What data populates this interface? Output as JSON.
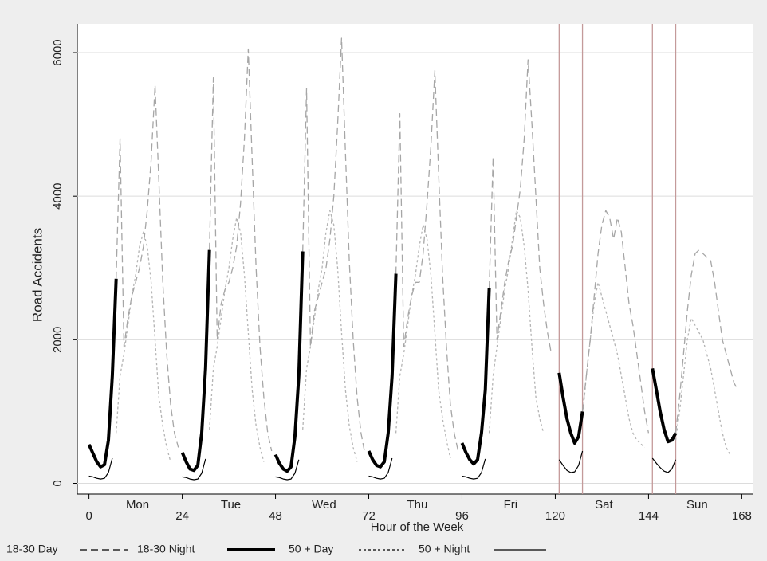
{
  "chart_data": {
    "type": "line",
    "x_label": "Hour of the Week",
    "y_label": "Road Accidents",
    "xlim": [
      -3,
      171
    ],
    "ylim": [
      -150,
      6400
    ],
    "xticks": [
      0,
      24,
      48,
      72,
      96,
      120,
      144,
      168
    ],
    "yticks": [
      0,
      2000,
      4000,
      6000
    ],
    "grid": true,
    "day_labels": [
      "Mon",
      "Tue",
      "Wed",
      "Thu",
      "Fri",
      "Sat",
      "Sun"
    ],
    "xlines": [
      121,
      127,
      145,
      151
    ],
    "xline_color": "#c49a9a",
    "series": [
      {
        "name": "18-30 Day",
        "color": "#a6a6a6",
        "dash": "long",
        "x": [
          7,
          8,
          9,
          10,
          11,
          12,
          13,
          14,
          15,
          16,
          17,
          18,
          19,
          20,
          21,
          22,
          23,
          null,
          31,
          32,
          33,
          34,
          35,
          36,
          37,
          38,
          39,
          40,
          41,
          42,
          43,
          44,
          45,
          46,
          47,
          null,
          55,
          56,
          57,
          58,
          59,
          60,
          61,
          62,
          63,
          64,
          65,
          66,
          67,
          68,
          69,
          70,
          71,
          null,
          79,
          80,
          81,
          82,
          83,
          84,
          85,
          86,
          87,
          88,
          89,
          90,
          91,
          92,
          93,
          94,
          95,
          null,
          103,
          104,
          105,
          106,
          107,
          108,
          109,
          110,
          111,
          112,
          113,
          114,
          115,
          116,
          117,
          118,
          119,
          null,
          127,
          128,
          129,
          130,
          131,
          132,
          133,
          134,
          135,
          136,
          137,
          138,
          139,
          140,
          141,
          142,
          143,
          144,
          null,
          151,
          152,
          153,
          154,
          155,
          156,
          157,
          158,
          159,
          160,
          161,
          162,
          163,
          164,
          165,
          166,
          167
        ],
        "values": [
          2850,
          4800,
          1900,
          2300,
          2600,
          2800,
          3000,
          3300,
          3800,
          4500,
          5550,
          4200,
          2800,
          1800,
          1100,
          700,
          500,
          null,
          3250,
          5650,
          2000,
          2500,
          2700,
          2800,
          3000,
          3300,
          3900,
          4800,
          6050,
          4500,
          3000,
          1900,
          1200,
          700,
          450,
          null,
          3230,
          5500,
          1900,
          2400,
          2600,
          2800,
          3000,
          3400,
          4000,
          5000,
          6200,
          4600,
          3100,
          2000,
          1200,
          700,
          420,
          null,
          2920,
          5150,
          1900,
          2300,
          2600,
          2800,
          2800,
          3200,
          3900,
          4700,
          5750,
          4300,
          2900,
          1900,
          1100,
          700,
          450,
          null,
          2720,
          4550,
          2000,
          2400,
          2800,
          3100,
          3300,
          3700,
          4100,
          4800,
          5900,
          5000,
          4000,
          3000,
          2500,
          2100,
          1800,
          null,
          1000,
          1500,
          2000,
          2600,
          3200,
          3600,
          3800,
          3700,
          3400,
          3700,
          3500,
          3000,
          2500,
          2200,
          1800,
          1400,
          1000,
          700,
          null,
          700,
          1200,
          1800,
          2400,
          2900,
          3200,
          3250,
          3200,
          3150,
          3100,
          2800,
          2400,
          2000,
          1800,
          1600,
          1400,
          1300
        ]
      },
      {
        "name": "18-30 Night",
        "color": "#000000",
        "dash": "thick",
        "x": [
          0,
          1,
          2,
          3,
          4,
          5,
          6,
          7,
          null,
          24,
          25,
          26,
          27,
          28,
          29,
          30,
          31,
          null,
          48,
          49,
          50,
          51,
          52,
          53,
          54,
          55,
          null,
          72,
          73,
          74,
          75,
          76,
          77,
          78,
          79,
          null,
          96,
          97,
          98,
          99,
          100,
          101,
          102,
          103,
          null,
          121,
          122,
          123,
          124,
          125,
          126,
          127,
          null,
          145,
          146,
          147,
          148,
          149,
          150,
          151
        ],
        "values": [
          540,
          420,
          300,
          230,
          260,
          600,
          1500,
          2850,
          null,
          430,
          300,
          200,
          180,
          250,
          700,
          1600,
          3250,
          null,
          400,
          280,
          200,
          170,
          230,
          650,
          1500,
          3230,
          null,
          450,
          330,
          250,
          230,
          300,
          700,
          1500,
          2920,
          null,
          560,
          430,
          330,
          270,
          330,
          700,
          1300,
          2720,
          null,
          1540,
          1200,
          900,
          700,
          560,
          650,
          1000,
          null,
          1600,
          1300,
          1000,
          750,
          580,
          600,
          700
        ]
      },
      {
        "name": "50 + Day",
        "color": "#b4b4b4",
        "dash": "short",
        "x": [
          7,
          8,
          9,
          10,
          11,
          12,
          13,
          14,
          15,
          16,
          17,
          18,
          19,
          20,
          21,
          null,
          31,
          32,
          33,
          34,
          35,
          36,
          37,
          38,
          39,
          40,
          41,
          42,
          43,
          44,
          45,
          null,
          55,
          56,
          57,
          58,
          59,
          60,
          61,
          62,
          63,
          64,
          65,
          66,
          67,
          68,
          69,
          null,
          79,
          80,
          81,
          82,
          83,
          84,
          85,
          86,
          87,
          88,
          89,
          90,
          91,
          92,
          93,
          null,
          103,
          104,
          105,
          106,
          107,
          108,
          109,
          110,
          111,
          112,
          113,
          114,
          115,
          116,
          117,
          null,
          127,
          128,
          129,
          130,
          131,
          132,
          133,
          134,
          135,
          136,
          137,
          138,
          139,
          140,
          141,
          142,
          143,
          null,
          151,
          152,
          153,
          154,
          155,
          156,
          157,
          158,
          159,
          160,
          161,
          162,
          163,
          164,
          165
        ],
        "values": [
          700,
          1500,
          1800,
          2200,
          2600,
          2900,
          3300,
          3500,
          3300,
          2800,
          2000,
          1200,
          800,
          500,
          300,
          null,
          750,
          1600,
          1900,
          2300,
          2700,
          3000,
          3400,
          3700,
          3500,
          2900,
          2100,
          1300,
          800,
          500,
          300,
          null,
          750,
          1600,
          1900,
          2300,
          2700,
          3000,
          3500,
          3800,
          3600,
          3000,
          2100,
          1300,
          800,
          500,
          300,
          null,
          700,
          1500,
          1800,
          2200,
          2600,
          2900,
          3300,
          3600,
          3400,
          2900,
          2100,
          1300,
          900,
          600,
          350,
          null,
          700,
          1500,
          1900,
          2300,
          2700,
          3000,
          3400,
          3800,
          3700,
          3300,
          2700,
          1900,
          1200,
          900,
          700,
          null,
          900,
          1500,
          2000,
          2500,
          2800,
          2600,
          2400,
          2200,
          2000,
          1800,
          1500,
          1200,
          900,
          700,
          600,
          550,
          500,
          null,
          600,
          1000,
          1500,
          2000,
          2300,
          2200,
          2100,
          2000,
          1800,
          1600,
          1300,
          1000,
          700,
          500,
          400
        ]
      },
      {
        "name": "50 + Night",
        "color": "#000000",
        "dash": "thin",
        "x": [
          0,
          1,
          2,
          3,
          4,
          5,
          6,
          null,
          24,
          25,
          26,
          27,
          28,
          29,
          30,
          null,
          48,
          49,
          50,
          51,
          52,
          53,
          54,
          null,
          72,
          73,
          74,
          75,
          76,
          77,
          78,
          null,
          96,
          97,
          98,
          99,
          100,
          101,
          102,
          null,
          121,
          122,
          123,
          124,
          125,
          126,
          127,
          null,
          145,
          146,
          147,
          148,
          149,
          150,
          151
        ],
        "values": [
          100,
          90,
          70,
          60,
          70,
          150,
          350,
          null,
          90,
          80,
          60,
          50,
          60,
          140,
          340,
          null,
          90,
          80,
          60,
          50,
          60,
          140,
          330,
          null,
          100,
          90,
          70,
          60,
          70,
          150,
          350,
          null,
          100,
          90,
          70,
          60,
          70,
          150,
          340,
          null,
          330,
          250,
          180,
          150,
          160,
          250,
          450,
          null,
          350,
          280,
          220,
          170,
          150,
          200,
          330
        ]
      }
    ]
  }
}
